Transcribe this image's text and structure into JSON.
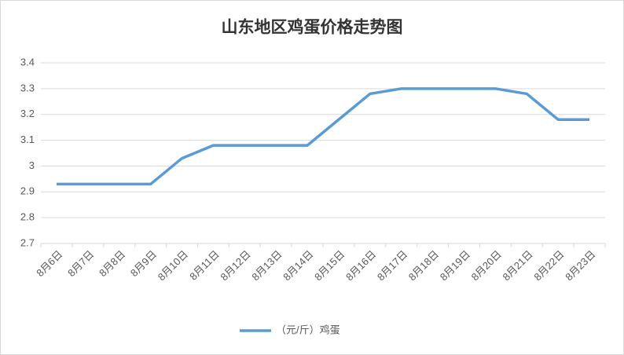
{
  "chart_data": {
    "type": "line",
    "title": "山东地区鸡蛋价格走势图",
    "categories": [
      "8月6日",
      "8月7日",
      "8月8日",
      "8月9日",
      "8月10日",
      "8月11日",
      "8月12日",
      "8月13日",
      "8月14日",
      "8月15日",
      "8月16日",
      "8月17日",
      "8月18日",
      "8月19日",
      "8月20日",
      "8月21日",
      "8月22日",
      "8月23日"
    ],
    "series": [
      {
        "name": "（元/斤）鸡蛋",
        "color": "#5b9bd5",
        "values": [
          2.93,
          2.93,
          2.93,
          2.93,
          3.03,
          3.08,
          3.08,
          3.08,
          3.08,
          3.18,
          3.28,
          3.3,
          3.3,
          3.3,
          3.3,
          3.28,
          3.18,
          3.18
        ]
      }
    ],
    "ylim": [
      2.7,
      3.4
    ],
    "yticks": [
      2.7,
      2.8,
      2.9,
      3,
      3.1,
      3.2,
      3.3,
      3.4
    ],
    "grid": true,
    "legend": "bottom"
  }
}
